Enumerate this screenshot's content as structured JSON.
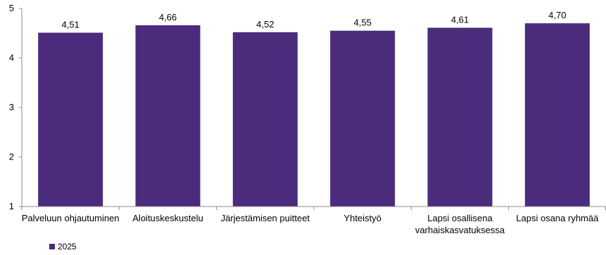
{
  "chart_data": {
    "type": "bar",
    "categories": [
      [
        "Palveluun ohjautuminen"
      ],
      [
        "Aloituskeskustelu"
      ],
      [
        "Järjestämisen puitteet"
      ],
      [
        "Yhteistyö"
      ],
      [
        "Lapsi osallisena",
        "varhaiskasvatuksessa"
      ],
      [
        "Lapsi osana ryhmää"
      ]
    ],
    "series": [
      {
        "name": "2025",
        "color": "#4b2c7c",
        "values": [
          4.51,
          4.66,
          4.52,
          4.55,
          4.61,
          4.7
        ],
        "labels": [
          "4,51",
          "4,66",
          "4,52",
          "4,55",
          "4,61",
          "4,70"
        ]
      }
    ],
    "ylim": [
      1,
      5
    ],
    "yticks": [
      "1",
      "2",
      "3",
      "4",
      "5"
    ],
    "grid": false,
    "legend_position": "bottom-left",
    "title": "",
    "xlabel": "",
    "ylabel": ""
  },
  "legend": {
    "label": "2025"
  }
}
